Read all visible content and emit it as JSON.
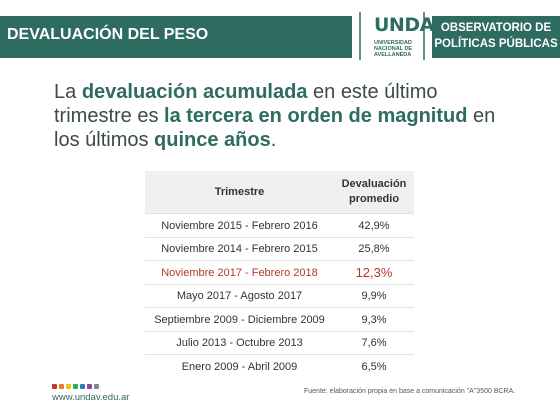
{
  "header": {
    "title": "DEVALUACIÓN DEL PESO",
    "logo_main": "UNDAV",
    "logo_sub_1": "UNIVERSIDAD",
    "logo_sub_2": "NACIONAL DE",
    "logo_sub_3": "AVELLANEDA",
    "observatorio_line1": "OBSERVATORIO DE",
    "observatorio_line2": "POLÍTICAS PÚBLICAS"
  },
  "headline": {
    "t1": "La ",
    "e1": "devaluación acumulada",
    "t2": " en este último trimestre es ",
    "e2": "la tercera en orden de magnitud",
    "t3": " en los últimos ",
    "e3": "quince años",
    "t4": "."
  },
  "table": {
    "headers": [
      "Trimestre",
      "Devaluación promedio"
    ],
    "rows": [
      {
        "period": "Noviembre 2015 - Febrero 2016",
        "value": "42,9%"
      },
      {
        "period": "Noviembre 2014 - Febrero 2015",
        "value": "25,8%"
      },
      {
        "period": "Noviembre 2017 - Febrero 2018",
        "value": "12,3%"
      },
      {
        "period": "Mayo 2017 - Agosto 2017",
        "value": "9,9%"
      },
      {
        "period": "Septiembre 2009 - Diciembre 2009",
        "value": "9,3%"
      },
      {
        "period": "Julio 2013 - Octubre 2013",
        "value": "7,6%"
      },
      {
        "period": "Enero 2009 - Abril 2009",
        "value": "6,5%"
      }
    ],
    "highlighted_row": 2
  },
  "footer": {
    "url": "www.undav.edu.ar",
    "source": "Fuente: elaboración propia en base a comunicación \"A\"3500 BCRA."
  },
  "colors": {
    "brand_green": "#2e6b60",
    "highlight_red": "#b03a2e",
    "dots": [
      "#c0392b",
      "#e67e22",
      "#f1c40f",
      "#27ae60",
      "#2980b9",
      "#8e44ad",
      "#7f8c8d"
    ]
  }
}
